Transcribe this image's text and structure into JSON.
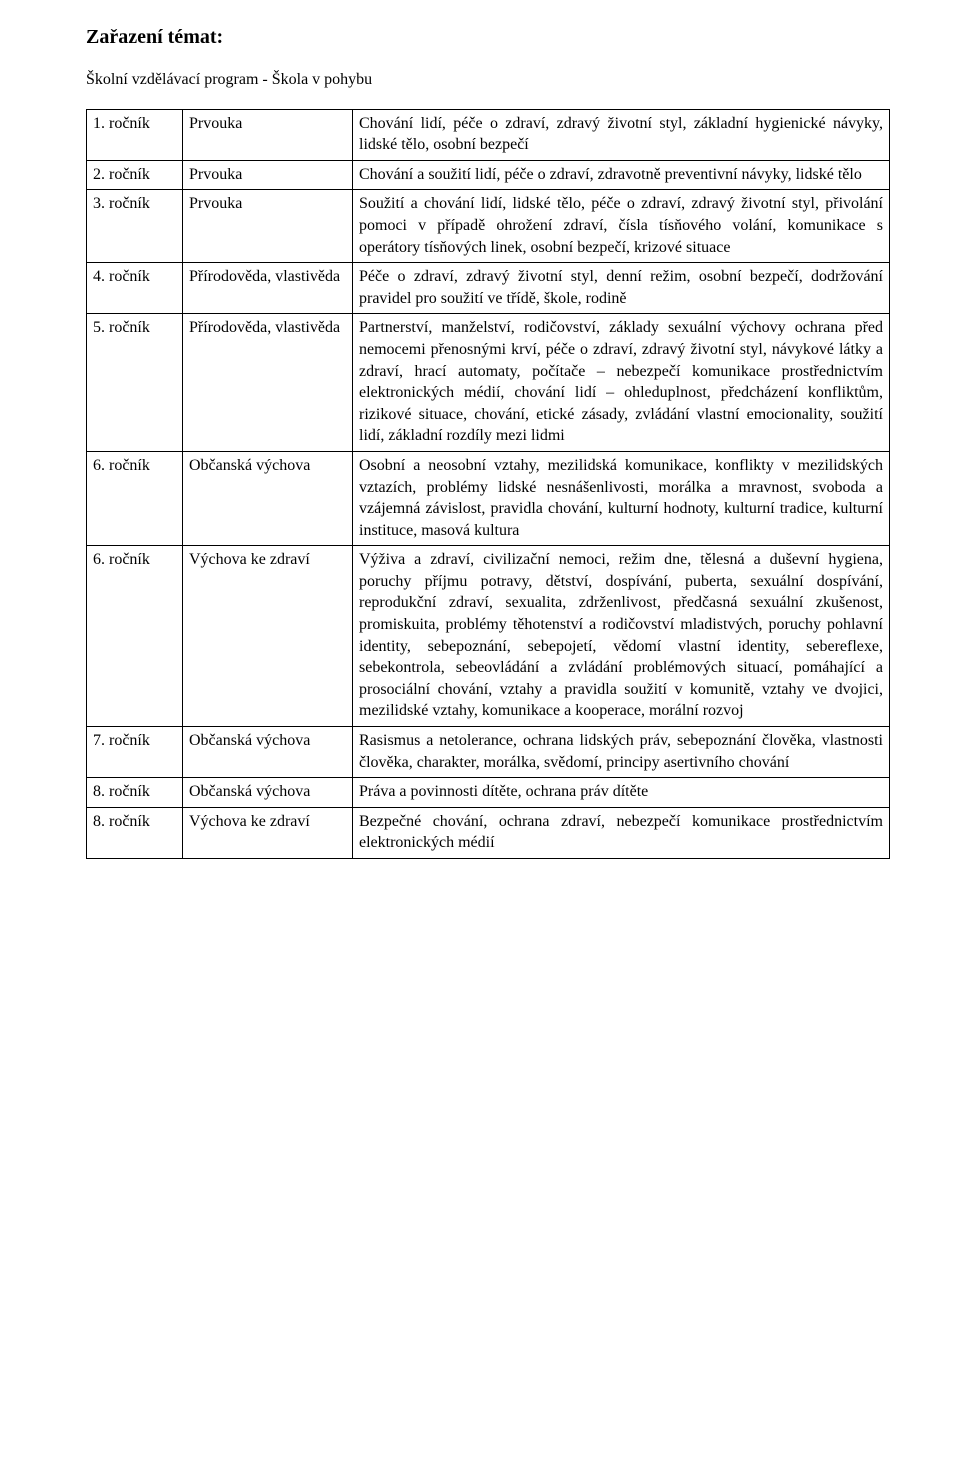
{
  "title": "Zařazení témat:",
  "subtitle": "Školní vzdělávací program - Škola v pohybu",
  "rows": [
    {
      "grade": "1. ročník",
      "subject": "Prvouka",
      "desc": "Chování lidí, péče o zdraví, zdravý životní styl, základní hygienické návyky, lidské tělo, osobní bezpečí"
    },
    {
      "grade": "2. ročník",
      "subject": "Prvouka",
      "desc": "Chování a soužití lidí, péče o zdraví, zdravotně preventivní návyky, lidské tělo"
    },
    {
      "grade": "3. ročník",
      "subject": "Prvouka",
      "desc": "Soužití a chování lidí, lidské tělo, péče o zdraví, zdravý životní styl, přivolání pomoci v případě ohrožení zdraví, čísla tísňového volání, komunikace s operátory tísňových linek, osobní bezpečí, krizové situace"
    },
    {
      "grade": "4. ročník",
      "subject": "Přírodověda, vlastivěda",
      "desc": "Péče o zdraví, zdravý životní styl, denní režim, osobní bezpečí, dodržování pravidel pro soužití ve třídě, škole, rodině"
    },
    {
      "grade": "5. ročník",
      "subject": "Přírodověda, vlastivěda",
      "desc": "Partnerství, manželství, rodičovství, základy sexuální výchovy ochrana před nemocemi přenosnými krví, péče o zdraví, zdravý životní styl, návykové látky a zdraví, hrací automaty, počítače – nebezpečí komunikace prostřednictvím elektronických médií, chování lidí – ohleduplnost, předcházení konfliktům, rizikové situace, chování, etické zásady, zvládání vlastní emocionality, soužití lidí, základní rozdíly mezi lidmi"
    },
    {
      "grade": "6. ročník",
      "subject": "Občanská výchova",
      "desc": "Osobní a neosobní vztahy, mezilidská komunikace, konflikty v mezilidských vztazích, problémy lidské nesnášenlivosti, morálka a mravnost, svoboda a vzájemná závislost, pravidla chování, kulturní hodnoty, kulturní tradice, kulturní instituce, masová kultura"
    },
    {
      "grade": "6. ročník",
      "subject": "Výchova ke zdraví",
      "desc": "Výživa a zdraví, civilizační nemoci, režim dne, tělesná a duševní hygiena, poruchy příjmu potravy, dětství, dospívání, puberta, sexuální dospívání, reprodukční zdraví, sexualita, zdrženlivost, předčasná sexuální zkušenost, promiskuita, problémy těhotenství a rodičovství mladistvých, poruchy pohlavní identity, sebepoznání, sebepojetí, vědomí vlastní identity, sebereflexe, sebekontrola, sebeovládání a zvládání problémových situací, pomáhající a prosociální chování, vztahy a pravidla soužití v komunitě, vztahy ve dvojici, mezilidské vztahy, komunikace a kooperace, morální rozvoj"
    },
    {
      "grade": "7. ročník",
      "subject": "Občanská výchova",
      "desc": "Rasismus a netolerance, ochrana lidských práv, sebepoznání člověka, vlastnosti člověka, charakter, morálka, svědomí, principy asertivního chování"
    },
    {
      "grade": "8. ročník",
      "subject": "Občanská výchova",
      "desc": "Práva a povinnosti dítěte, ochrana práv dítěte"
    },
    {
      "grade": "8. ročník",
      "subject": "Výchova ke zdraví",
      "desc": "Bezpečné chování, ochrana zdraví, nebezpečí komunikace prostřednictvím elektronických médií"
    }
  ]
}
